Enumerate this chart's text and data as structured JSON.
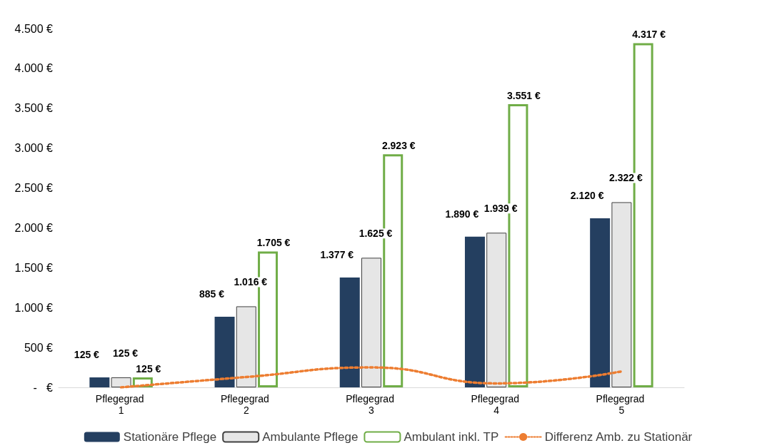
{
  "chart_data": {
    "type": "bar",
    "categories": [
      "Pflegegrad 1",
      "Pflegegrad 2",
      "Pflegegrad 3",
      "Pflegegrad 4",
      "Pflegegrad 5"
    ],
    "ylim": [
      0,
      4500
    ],
    "yticks": [
      {
        "value": 0,
        "label": "-   €"
      },
      {
        "value": 500,
        "label": "500 €"
      },
      {
        "value": 1000,
        "label": "1.000 €"
      },
      {
        "value": 1500,
        "label": "1.500 €"
      },
      {
        "value": 2000,
        "label": "2.000 €"
      },
      {
        "value": 2500,
        "label": "2.500 €"
      },
      {
        "value": 3000,
        "label": "3.000 €"
      },
      {
        "value": 3500,
        "label": "3.500 €"
      },
      {
        "value": 4000,
        "label": "4.000 €"
      },
      {
        "value": 4500,
        "label": "4.500 €"
      }
    ],
    "grid": false,
    "legend": "bottom",
    "series": [
      {
        "name": "Stationäre Pflege",
        "color": "#243f60",
        "values": [
          125,
          885,
          1377,
          1890,
          2120
        ],
        "value_labels": [
          "125 €",
          "885 €",
          "1.377 €",
          "1.890 €",
          "2.120 €"
        ]
      },
      {
        "name": "Ambulante Pflege",
        "color": "#e6e6e6",
        "values": [
          125,
          1016,
          1625,
          1939,
          2322
        ],
        "value_labels": [
          "125 €",
          "1.016 €",
          "1.625 €",
          "1.939 €",
          "2.322 €"
        ]
      },
      {
        "name": "Ambulant inkl. TP",
        "color": "#70ad47",
        "values": [
          125,
          1705,
          2923,
          3551,
          4317
        ],
        "value_labels": [
          "125 €",
          "1.705 €",
          "2.923 €",
          "3.551 €",
          "4.317 €"
        ]
      },
      {
        "name": "Differenz Amb. zu Stationär",
        "type": "line",
        "color": "#ed7d31",
        "values": [
          0,
          130,
          250,
          50,
          200
        ],
        "marker": "none",
        "line_style": "dotted"
      }
    ]
  }
}
